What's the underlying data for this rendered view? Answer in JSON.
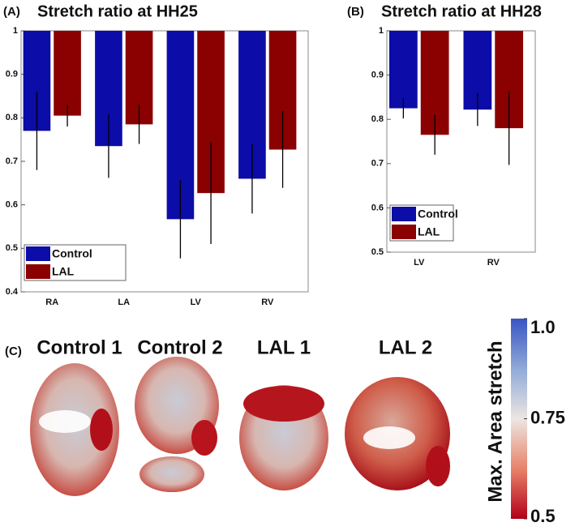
{
  "chart_data": [
    {
      "type": "bar",
      "label": "(A)",
      "title": "Stretch ratio at HH25",
      "categories": [
        "RA",
        "LA",
        "LV",
        "RV"
      ],
      "series": [
        {
          "name": "Control",
          "color": "#0c0ca8",
          "values": [
            0.77,
            0.735,
            0.567,
            0.66
          ],
          "errors": [
            0.09,
            0.073,
            0.09,
            0.08
          ]
        },
        {
          "name": "LAL",
          "color": "#8b0000",
          "values": [
            0.805,
            0.785,
            0.627,
            0.727
          ],
          "errors": [
            0.025,
            0.045,
            0.117,
            0.088
          ]
        }
      ],
      "ylim": [
        0.4,
        1
      ],
      "yticks": [
        0.4,
        0.5,
        0.6,
        0.7,
        0.8,
        0.9,
        1
      ],
      "legend": "lower left"
    },
    {
      "type": "bar",
      "label": "(B)",
      "title": "Stretch ratio at HH28",
      "categories": [
        "LV",
        "RV"
      ],
      "series": [
        {
          "name": "Control",
          "color": "#0c0ca8",
          "values": [
            0.825,
            0.822
          ],
          "errors": [
            0.023,
            0.037
          ]
        },
        {
          "name": "LAL",
          "color": "#8b0000",
          "values": [
            0.765,
            0.78
          ],
          "errors": [
            0.045,
            0.083
          ]
        }
      ],
      "ylim": [
        0.5,
        1
      ],
      "yticks": [
        0.5,
        0.6,
        0.7,
        0.8,
        0.9,
        1
      ],
      "legend": "lower left"
    }
  ],
  "panel_c": {
    "label": "(C)",
    "samples": [
      "Control 1",
      "Control 2",
      "LAL 1",
      "LAL 2"
    ],
    "colorbar": {
      "title": "Max. Area stretch",
      "lim": [
        0.5,
        1
      ],
      "ticks": [
        {
          "value": 1,
          "label": "1.0"
        },
        0.75,
        0.5
      ]
    }
  }
}
